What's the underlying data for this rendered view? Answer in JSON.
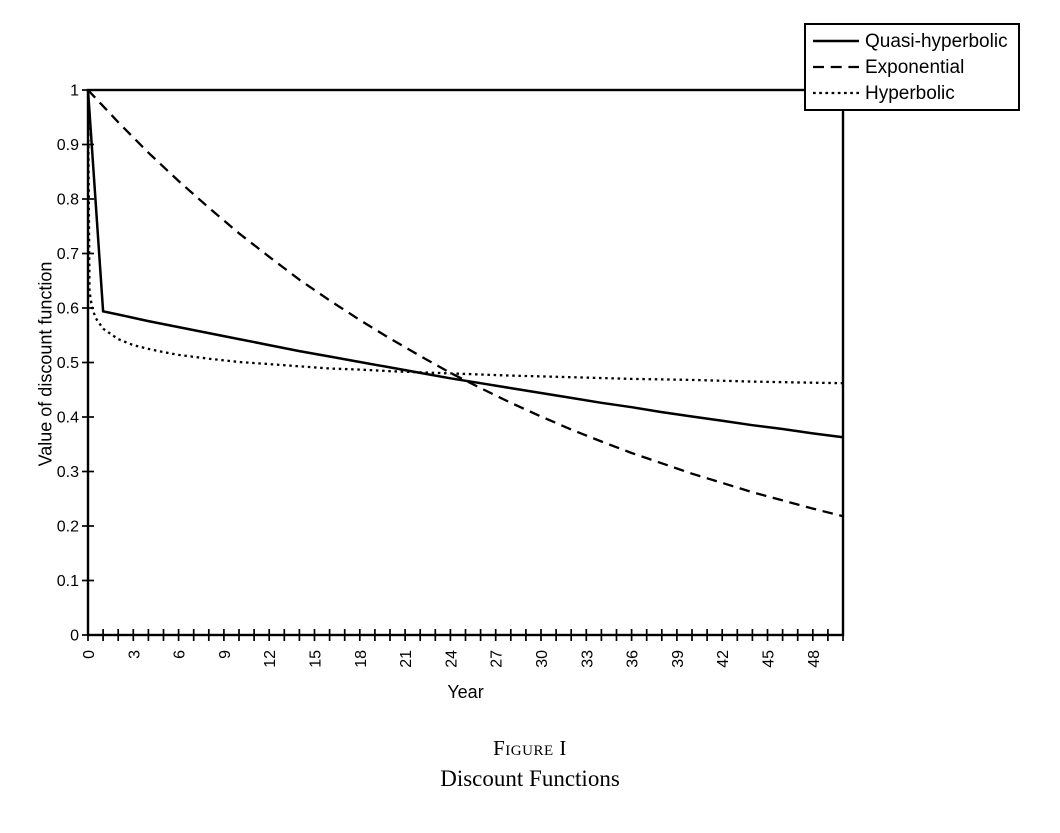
{
  "chart_data": {
    "type": "line",
    "title": "",
    "xlabel": "Year",
    "ylabel": "Value of discount function",
    "xlim": [
      0,
      50
    ],
    "ylim": [
      0,
      1
    ],
    "grid": false,
    "legend_position": "top-right",
    "x_minor_tick_step": 1,
    "x_tick_label_values": [
      0,
      3,
      6,
      9,
      12,
      15,
      18,
      21,
      24,
      27,
      30,
      33,
      36,
      39,
      42,
      45,
      48
    ],
    "x_tick_labels": [
      "0",
      "3",
      "6",
      "9",
      "12",
      "15",
      "18",
      "21",
      "24",
      "27",
      "30",
      "33",
      "36",
      "39",
      "42",
      "45",
      "48"
    ],
    "y_tick_values": [
      0,
      0.1,
      0.2,
      0.3,
      0.4,
      0.5,
      0.6,
      0.7,
      0.8,
      0.9,
      1
    ],
    "y_tick_labels": [
      "0",
      "0.1",
      "0.2",
      "0.3",
      "0.4",
      "0.5",
      "0.6",
      "0.7",
      "0.8",
      "0.9",
      "1"
    ],
    "series": [
      {
        "name": "Quasi-hyperbolic",
        "line_style": "solid",
        "color": "#000000",
        "x": [
          0,
          1,
          2,
          4,
          6,
          8,
          10,
          12,
          14,
          16,
          18,
          20,
          22,
          24,
          26,
          28,
          30,
          32,
          34,
          36,
          38,
          40,
          42,
          44,
          46,
          48,
          50
        ],
        "y": [
          1,
          0.594,
          0.588,
          0.576,
          0.565,
          0.554,
          0.543,
          0.532,
          0.521,
          0.511,
          0.501,
          0.491,
          0.481,
          0.471,
          0.462,
          0.453,
          0.444,
          0.435,
          0.426,
          0.418,
          0.409,
          0.401,
          0.393,
          0.385,
          0.378,
          0.37,
          0.363
        ]
      },
      {
        "name": "Exponential",
        "line_style": "dashed",
        "color": "#000000",
        "x": [
          0,
          2,
          4,
          6,
          8,
          10,
          12,
          14,
          16,
          18,
          20,
          22,
          24,
          26,
          28,
          30,
          32,
          34,
          36,
          38,
          40,
          42,
          44,
          46,
          48,
          50
        ],
        "y": [
          1,
          0.941,
          0.885,
          0.833,
          0.784,
          0.737,
          0.694,
          0.652,
          0.614,
          0.578,
          0.544,
          0.512,
          0.481,
          0.453,
          0.426,
          0.401,
          0.377,
          0.355,
          0.334,
          0.315,
          0.296,
          0.279,
          0.262,
          0.247,
          0.232,
          0.218
        ]
      },
      {
        "name": "Hyperbolic",
        "line_style": "dotted",
        "color": "#000000",
        "x": [
          0,
          0.1,
          0.25,
          0.5,
          1,
          2,
          3,
          4,
          5,
          6,
          8,
          10,
          12,
          14,
          16,
          18,
          20,
          24,
          28,
          32,
          36,
          40,
          44,
          48,
          50
        ],
        "y": [
          1,
          0.631,
          0.603,
          0.582,
          0.562,
          0.543,
          0.532,
          0.525,
          0.519,
          0.514,
          0.507,
          0.501,
          0.497,
          0.493,
          0.489,
          0.487,
          0.484,
          0.48,
          0.476,
          0.473,
          0.47,
          0.468,
          0.465,
          0.463,
          0.462
        ]
      }
    ]
  },
  "caption": {
    "figure_label": "Figure I",
    "title": "Discount Functions"
  },
  "colors": {
    "line": "#000000",
    "background": "#ffffff"
  }
}
